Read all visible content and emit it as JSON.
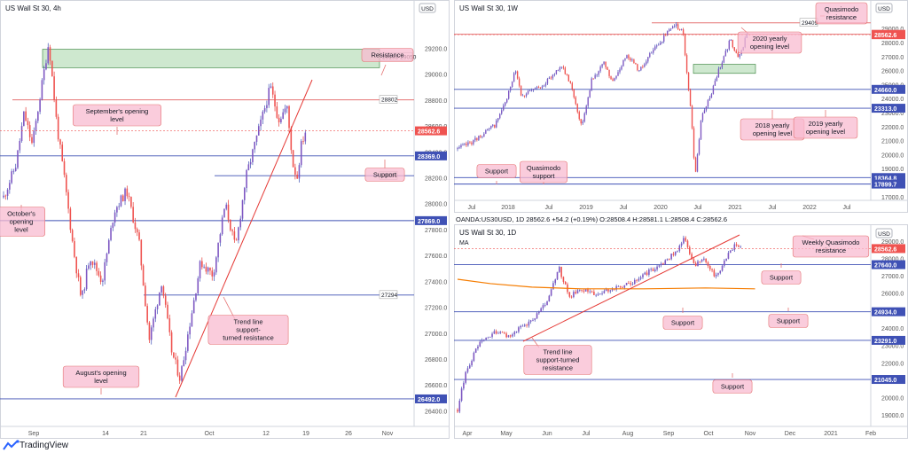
{
  "footer": {
    "brand": "TradingView"
  },
  "chart_data": [
    {
      "id": "h4",
      "type": "candlestick",
      "title": "US Wall St 30, 4h",
      "currency_badge": "USD",
      "ylim": [
        26300,
        29450
      ],
      "y_ticks": [
        26400,
        26600,
        26800,
        27000,
        27200,
        27400,
        27600,
        27800,
        28000,
        28200,
        28400,
        28600,
        28800,
        29000,
        29200
      ],
      "x_ticks": [
        "Sep",
        "14",
        "21",
        "Oct",
        "12",
        "19",
        "26",
        "Nov"
      ],
      "price_path": [
        {
          "x": 0.0,
          "p": 28050
        },
        {
          "x": 0.03,
          "p": 28300
        },
        {
          "x": 0.05,
          "p": 28700
        },
        {
          "x": 0.07,
          "p": 28450
        },
        {
          "x": 0.09,
          "p": 28850
        },
        {
          "x": 0.11,
          "p": 29250
        },
        {
          "x": 0.13,
          "p": 28600
        },
        {
          "x": 0.15,
          "p": 28150
        },
        {
          "x": 0.17,
          "p": 27650
        },
        {
          "x": 0.19,
          "p": 27250
        },
        {
          "x": 0.21,
          "p": 27600
        },
        {
          "x": 0.24,
          "p": 27400
        },
        {
          "x": 0.27,
          "p": 27950
        },
        {
          "x": 0.3,
          "p": 28100
        },
        {
          "x": 0.33,
          "p": 27700
        },
        {
          "x": 0.355,
          "p": 26950
        },
        {
          "x": 0.385,
          "p": 27400
        },
        {
          "x": 0.41,
          "p": 26850
        },
        {
          "x": 0.43,
          "p": 26650
        },
        {
          "x": 0.455,
          "p": 27100
        },
        {
          "x": 0.48,
          "p": 27550
        },
        {
          "x": 0.51,
          "p": 27450
        },
        {
          "x": 0.54,
          "p": 28000
        },
        {
          "x": 0.565,
          "p": 27650
        },
        {
          "x": 0.59,
          "p": 28200
        },
        {
          "x": 0.62,
          "p": 28550
        },
        {
          "x": 0.65,
          "p": 28900
        },
        {
          "x": 0.67,
          "p": 28650
        },
        {
          "x": 0.69,
          "p": 28750
        },
        {
          "x": 0.705,
          "p": 28300
        },
        {
          "x": 0.715,
          "p": 28200
        },
        {
          "x": 0.725,
          "p": 28450
        },
        {
          "x": 0.735,
          "p": 28560
        }
      ],
      "levels": [
        {
          "label": "29193-29050",
          "kind": "zone",
          "low": 29050,
          "high": 29193,
          "color": "#a5d6a7"
        },
        {
          "label": "28802",
          "value": 28802,
          "color": "#e57373"
        },
        {
          "label": "28562.6",
          "value": 28562.6,
          "color": "#ef5350",
          "current": true
        },
        {
          "label": "28369.0",
          "value": 28369,
          "color": "#3f51b5"
        },
        {
          "label": "28216",
          "value": 28216,
          "color": "#3f51b5"
        },
        {
          "label": "27869.0",
          "value": 27869,
          "color": "#3f51b5"
        },
        {
          "label": "27294",
          "value": 27294,
          "color": "#3f51b5"
        },
        {
          "label": "26492.0",
          "value": 26492,
          "color": "#3f51b5"
        }
      ],
      "annotations": [
        {
          "text": [
            "Resistance"
          ]
        },
        {
          "text": [
            "September's opening",
            "level"
          ]
        },
        {
          "text": [
            "Support"
          ]
        },
        {
          "text": [
            "October's",
            "opening",
            "level"
          ]
        },
        {
          "text": [
            "Trend line",
            "support-",
            "turned resistance"
          ]
        },
        {
          "text": [
            "August's opening",
            "level"
          ]
        }
      ]
    },
    {
      "id": "weekly",
      "type": "candlestick",
      "title": "US Wall St 30, 1W",
      "currency_badge": "USD",
      "ylim": [
        16800,
        29900
      ],
      "y_ticks": [
        17000,
        18000,
        19000,
        20000,
        21000,
        22000,
        23000,
        24000,
        25000,
        26000,
        27000,
        28000,
        29000
      ],
      "x_ticks": [
        "Jul",
        "2018",
        "Jul",
        "2019",
        "Jul",
        "2020",
        "Jul",
        "2021",
        "Jul",
        "2022",
        "Jul"
      ],
      "price_path": [
        {
          "x": 0.0,
          "p": 20400
        },
        {
          "x": 0.04,
          "p": 21000
        },
        {
          "x": 0.09,
          "p": 22100
        },
        {
          "x": 0.12,
          "p": 24000
        },
        {
          "x": 0.14,
          "p": 26200
        },
        {
          "x": 0.155,
          "p": 24200
        },
        {
          "x": 0.19,
          "p": 24700
        },
        {
          "x": 0.22,
          "p": 25300
        },
        {
          "x": 0.25,
          "p": 26400
        },
        {
          "x": 0.275,
          "p": 25000
        },
        {
          "x": 0.3,
          "p": 22000
        },
        {
          "x": 0.325,
          "p": 25400
        },
        {
          "x": 0.355,
          "p": 26500
        },
        {
          "x": 0.375,
          "p": 25100
        },
        {
          "x": 0.41,
          "p": 27200
        },
        {
          "x": 0.44,
          "p": 26000
        },
        {
          "x": 0.47,
          "p": 27300
        },
        {
          "x": 0.5,
          "p": 28400
        },
        {
          "x": 0.525,
          "p": 29300
        },
        {
          "x": 0.545,
          "p": 28800
        },
        {
          "x": 0.565,
          "p": 23000
        },
        {
          "x": 0.575,
          "p": 18500
        },
        {
          "x": 0.59,
          "p": 22600
        },
        {
          "x": 0.615,
          "p": 24500
        },
        {
          "x": 0.635,
          "p": 26300
        },
        {
          "x": 0.66,
          "p": 28200
        },
        {
          "x": 0.68,
          "p": 26800
        },
        {
          "x": 0.7,
          "p": 28560
        }
      ],
      "levels": [
        {
          "label": "29409",
          "value": 29409,
          "color": "#e57373"
        },
        {
          "label": "28595.0",
          "value": 28595,
          "color": "#e57373"
        },
        {
          "label": "28562.6",
          "value": 28562.6,
          "color": "#ef5350",
          "current": true
        },
        {
          "label": "24660.0",
          "value": 24660,
          "color": "#3f51b5"
        },
        {
          "label": "23313.0",
          "value": 23313,
          "color": "#3f51b5"
        },
        {
          "label": "18364.8",
          "value": 18364.8,
          "color": "#3f51b5"
        },
        {
          "label": "17899.7",
          "value": 17899.7,
          "color": "#3f51b5"
        },
        {
          "label": "",
          "kind": "zone",
          "low": 25800,
          "high": 26450,
          "color": "#a5d6a7"
        }
      ],
      "annotations": [
        {
          "text": [
            "Quasimodo",
            "resistance"
          ]
        },
        {
          "text": [
            "2020 yearly",
            "opening level"
          ]
        },
        {
          "text": [
            "2018 yearly",
            "opening level"
          ]
        },
        {
          "text": [
            "2019 yearly",
            "opening level"
          ]
        },
        {
          "text": [
            "Support"
          ]
        },
        {
          "text": [
            "Quasimodo",
            "support"
          ]
        }
      ]
    },
    {
      "id": "daily",
      "type": "candlestick",
      "title": "US Wall St 30, 1D",
      "ohlc_line": "OANDA:US30USD, 1D  28562.6  +54.2 (+0.19%)  O:28508.4  H:28581.1  L:28508.4  C:28562.6",
      "ma_label": "MA",
      "currency_badge": "USD",
      "ylim": [
        18500,
        29500
      ],
      "y_ticks": [
        19000,
        20000,
        21000,
        22000,
        23000,
        24000,
        25000,
        26000,
        27000,
        28000,
        29000
      ],
      "x_ticks": [
        "Apr",
        "May",
        "Jun",
        "Jul",
        "Aug",
        "Sep",
        "Oct",
        "Nov",
        "Dec",
        "2021",
        "Feb"
      ],
      "price_path": [
        {
          "x": 0.0,
          "p": 19300
        },
        {
          "x": 0.02,
          "p": 21500
        },
        {
          "x": 0.05,
          "p": 23000
        },
        {
          "x": 0.09,
          "p": 23800
        },
        {
          "x": 0.12,
          "p": 23500
        },
        {
          "x": 0.16,
          "p": 24100
        },
        {
          "x": 0.19,
          "p": 24700
        },
        {
          "x": 0.22,
          "p": 25600
        },
        {
          "x": 0.245,
          "p": 27500
        },
        {
          "x": 0.27,
          "p": 25800
        },
        {
          "x": 0.3,
          "p": 26200
        },
        {
          "x": 0.34,
          "p": 25900
        },
        {
          "x": 0.38,
          "p": 26300
        },
        {
          "x": 0.42,
          "p": 26600
        },
        {
          "x": 0.46,
          "p": 27200
        },
        {
          "x": 0.5,
          "p": 27800
        },
        {
          "x": 0.535,
          "p": 28600
        },
        {
          "x": 0.55,
          "p": 29150
        },
        {
          "x": 0.57,
          "p": 27600
        },
        {
          "x": 0.6,
          "p": 27900
        },
        {
          "x": 0.625,
          "p": 26900
        },
        {
          "x": 0.645,
          "p": 27800
        },
        {
          "x": 0.67,
          "p": 28800
        },
        {
          "x": 0.685,
          "p": 28600
        }
      ],
      "moving_average": [
        {
          "x": 0.0,
          "p": 26800
        },
        {
          "x": 0.08,
          "p": 26550
        },
        {
          "x": 0.18,
          "p": 26350
        },
        {
          "x": 0.3,
          "p": 26250
        },
        {
          "x": 0.45,
          "p": 26250
        },
        {
          "x": 0.6,
          "p": 26300
        },
        {
          "x": 0.72,
          "p": 26250
        }
      ],
      "levels": [
        {
          "label": "28562.6",
          "value": 28562.6,
          "color": "#ef5350",
          "current": true
        },
        {
          "label": "27640.0",
          "value": 27640,
          "color": "#3f51b5"
        },
        {
          "label": "24934.0",
          "value": 24934,
          "color": "#3f51b5"
        },
        {
          "label": "23291.0",
          "value": 23291,
          "color": "#3f51b5"
        },
        {
          "label": "21045.0",
          "value": 21045,
          "color": "#3f51b5"
        }
      ],
      "annotations": [
        {
          "text": [
            "Weekly Quasimodo",
            "resistance"
          ]
        },
        {
          "text": [
            "Support"
          ]
        },
        {
          "text": [
            "Support"
          ]
        },
        {
          "text": [
            "Support"
          ]
        },
        {
          "text": [
            "Trend line",
            "support-turned",
            "resistance"
          ]
        },
        {
          "text": [
            "Support"
          ]
        }
      ]
    }
  ]
}
